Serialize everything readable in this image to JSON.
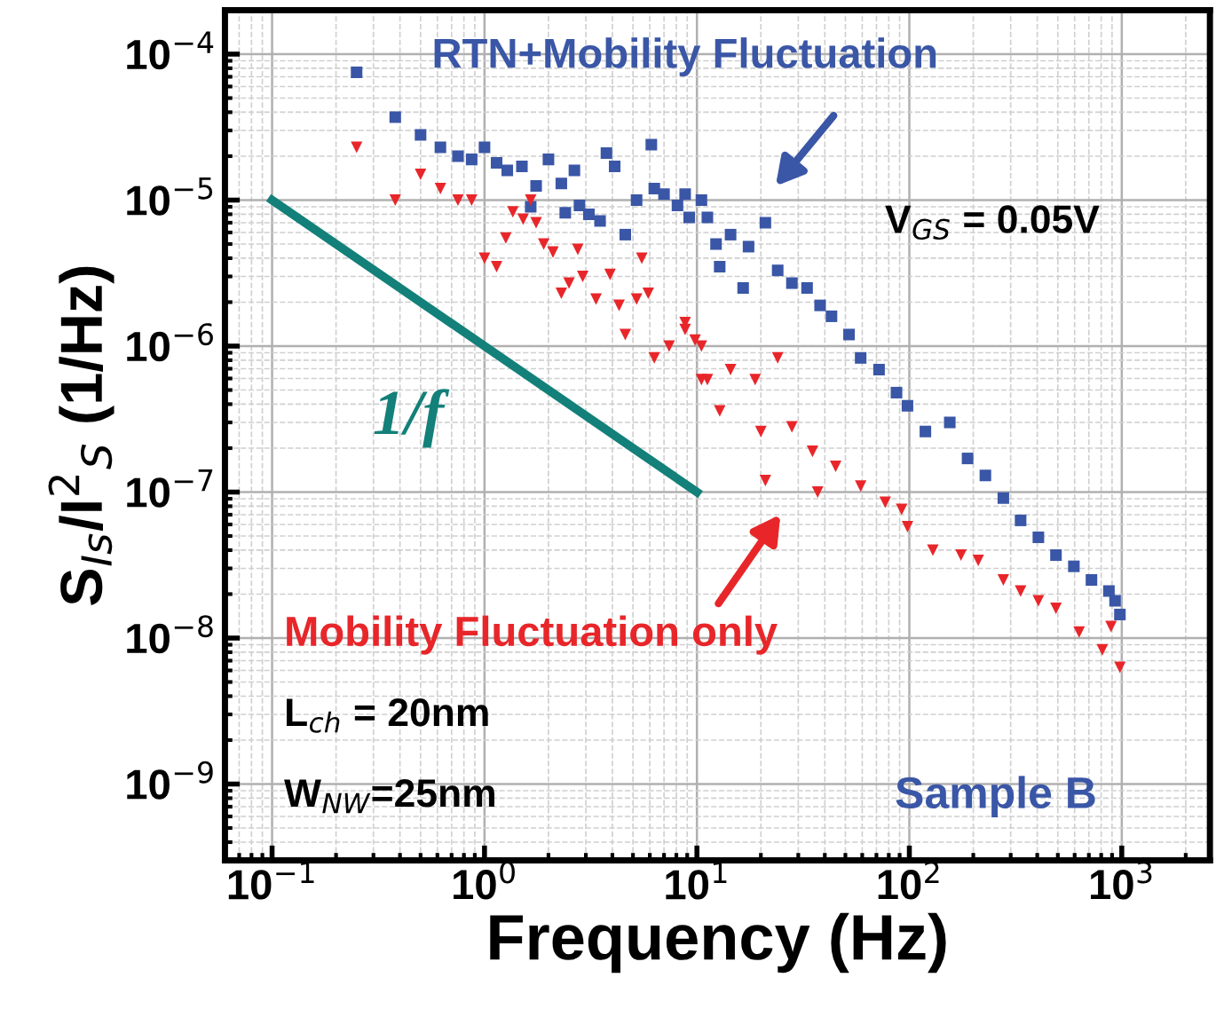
{
  "chart_data": {
    "type": "scatter",
    "xlabel": "Frequency (Hz)",
    "ylabel": "S$_{Is}$/I$^{2}$$_{S}$ (1/Hz)",
    "log": "xy",
    "grid": true,
    "xlim": [
      0.06,
      2600
    ],
    "ylim": [
      3e-10,
      0.0002
    ],
    "xticks": [
      {
        "value": 0.1,
        "label": "10$^{−1}$"
      },
      {
        "value": 1,
        "label": "10$^{0}$"
      },
      {
        "value": 10,
        "label": "10$^{1}$"
      },
      {
        "value": 100,
        "label": "10$^{2}$"
      },
      {
        "value": 1000,
        "label": "10$^{3}$"
      }
    ],
    "yticks": [
      {
        "value": 1e-09,
        "label": "10$^{−9}$"
      },
      {
        "value": 1e-08,
        "label": "10$^{−8}$"
      },
      {
        "value": 1e-07,
        "label": "10$^{−7}$"
      },
      {
        "value": 1e-06,
        "label": "10$^{−6}$"
      },
      {
        "value": 1e-05,
        "label": "10$^{−5}$"
      },
      {
        "value": 0.0001,
        "label": "10$^{−4}$"
      }
    ],
    "series": [
      {
        "color": "#3a56a6",
        "marker": "square",
        "x": [
          0.25,
          0.38,
          0.5,
          0.62,
          0.75,
          0.87,
          1.0,
          1.14,
          1.28,
          1.5,
          1.75,
          1.65,
          2.0,
          2.3,
          2.4,
          2.65,
          2.8,
          3.1,
          3.5,
          3.75,
          4.1,
          4.6,
          5.2,
          6.1,
          6.3,
          7.0,
          8.1,
          9.2,
          10.5,
          12.3,
          12.8,
          8.8,
          11.2,
          14.4,
          17.5,
          16.5,
          21,
          24,
          28,
          33,
          38,
          43,
          52,
          59,
          72,
          87,
          98,
          119,
          155,
          188,
          228,
          277,
          334,
          405,
          490,
          595,
          720,
          870,
          980,
          930
        ],
        "values": [
          7.5e-05,
          3.7e-05,
          2.8e-05,
          2.3e-05,
          2e-05,
          1.9e-05,
          2.3e-05,
          1.8e-05,
          1.6e-05,
          1.7e-05,
          1.25e-05,
          9e-06,
          1.9e-05,
          1.3e-05,
          8.2e-06,
          1.6e-05,
          9.2e-06,
          8e-06,
          7.2e-06,
          2.1e-05,
          1.7e-05,
          5.8e-06,
          1e-05,
          2.4e-05,
          1.2e-05,
          1.1e-05,
          9.2e-06,
          7.6e-06,
          1e-05,
          5e-06,
          3.5e-06,
          1.1e-05,
          7.6e-06,
          5.8e-06,
          4.8e-06,
          2.5e-06,
          7e-06,
          3.3e-06,
          2.7e-06,
          2.5e-06,
          1.9e-06,
          1.6e-06,
          1.2e-06,
          8.3e-07,
          6.9e-07,
          4.8e-07,
          3.9e-07,
          2.6e-07,
          3e-07,
          1.7e-07,
          1.3e-07,
          9.1e-08,
          6.4e-08,
          4.9e-08,
          3.7e-08,
          3.1e-08,
          2.5e-08,
          2.1e-08,
          1.45e-08,
          1.8e-08
        ]
      },
      {
        "color": "#e8262a",
        "marker": "triangle",
        "x": [
          0.25,
          0.38,
          0.5,
          0.62,
          0.75,
          0.87,
          1.0,
          1.14,
          1.26,
          1.36,
          1.52,
          1.65,
          1.75,
          1.9,
          2.1,
          2.3,
          2.5,
          2.75,
          2.9,
          3.35,
          3.9,
          4.3,
          4.6,
          5.2,
          5.5,
          5.9,
          6.3,
          7.4,
          8.8,
          9.8,
          10.5,
          12.8,
          8.8,
          10.5,
          11.2,
          14.4,
          18.8,
          24,
          20,
          21,
          28,
          35,
          37,
          45,
          59,
          77,
          92,
          98,
          129,
          175,
          211,
          277,
          334,
          405,
          490,
          630,
          810,
          980,
          890
        ],
        "values": [
          2.3e-05,
          1e-05,
          1.5e-05,
          1.2e-05,
          1e-05,
          1e-05,
          4e-06,
          3.5e-06,
          5.5e-06,
          8.3e-06,
          7.4e-06,
          1e-05,
          7e-06,
          5e-06,
          4.4e-06,
          2.3e-06,
          2.7e-06,
          4.6e-06,
          3e-06,
          2.1e-06,
          3.1e-06,
          1.9e-06,
          1.2e-06,
          2.1e-06,
          4e-06,
          2.3e-06,
          8.3e-07,
          1e-06,
          1.3e-06,
          1.1e-06,
          5.9e-07,
          3.6e-07,
          1.45e-06,
          1e-06,
          5.9e-07,
          6.9e-07,
          5.9e-07,
          8.3e-07,
          2.6e-07,
          1.2e-07,
          2.8e-07,
          1.9e-07,
          1e-07,
          1.5e-07,
          1.1e-07,
          8.5e-08,
          7.6e-08,
          5.8e-08,
          4e-08,
          3.7e-08,
          3.4e-08,
          2.5e-08,
          2.1e-08,
          1.8e-08,
          1.6e-08,
          1.1e-08,
          8.3e-09,
          6.3e-09,
          1.2e-08
        ]
      },
      {
        "type": "line",
        "color": "#138079",
        "marker": "none",
        "x": [
          0.1,
          10
        ],
        "values": [
          1e-05,
          1e-07
        ]
      }
    ],
    "annotations": [
      "RTN+Mobility Fluctuation",
      "Mobility Fluctuation only",
      "1/f",
      "V$_{GS}$ = 0.05V",
      "L$_{ch}$ = 20nm",
      "W$_{NW}$=25nm",
      "Sample B"
    ]
  }
}
